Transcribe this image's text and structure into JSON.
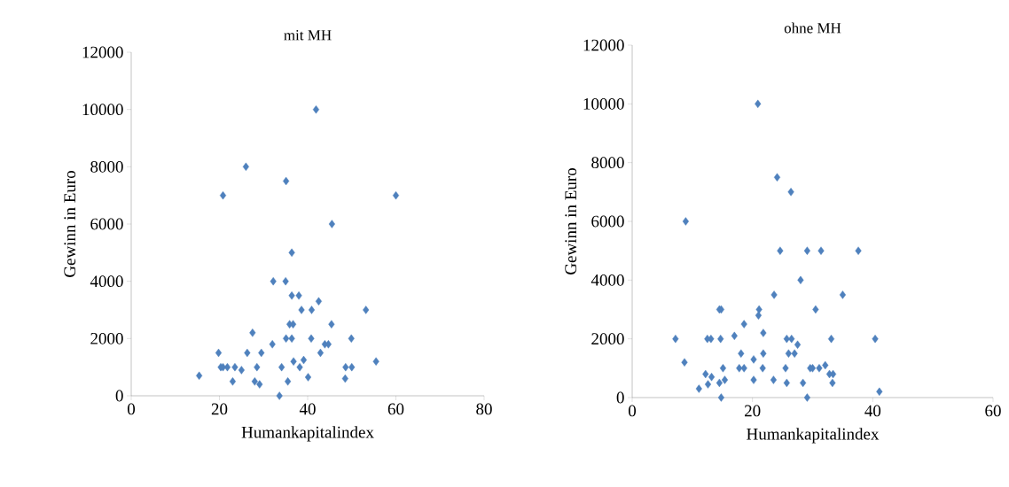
{
  "chart_data": [
    {
      "type": "scatter",
      "title": "mit MH",
      "xlabel": "Humankapitalindex",
      "ylabel": "Gewinn in Euro",
      "color": "#4f81bd",
      "marker": "diamond",
      "grid": false,
      "x": [
        41.9,
        26.0,
        35.1,
        20.8,
        60.0,
        45.5,
        36.4,
        32.2,
        35.0,
        36.4,
        38.0,
        42.5,
        38.6,
        40.9,
        53.2,
        35.9,
        36.7,
        45.4,
        27.5,
        35.1,
        36.4,
        40.8,
        49.9,
        32.0,
        43.9,
        44.7,
        19.8,
        26.3,
        29.5,
        42.9,
        36.8,
        39.1,
        55.5,
        20.3,
        20.8,
        21.8,
        23.5,
        25.0,
        28.5,
        34.1,
        38.2,
        48.6,
        50.0,
        15.4,
        23.0,
        28.0,
        29.1,
        35.5,
        40.1,
        48.5,
        33.6
      ],
      "values": [
        10000,
        8000,
        7500,
        7000,
        7000,
        6000,
        5000,
        4000,
        4000,
        3500,
        3500,
        3300,
        3000,
        3000,
        3000,
        2500,
        2500,
        2500,
        2200,
        2000,
        2000,
        2000,
        2000,
        1800,
        1800,
        1800,
        1500,
        1500,
        1500,
        1500,
        1200,
        1250,
        1200,
        1000,
        1000,
        1000,
        1000,
        900,
        1000,
        1000,
        1000,
        1000,
        1000,
        700,
        500,
        500,
        400,
        500,
        650,
        600,
        0
      ],
      "xlim": [
        0,
        80
      ],
      "xticks": [
        0,
        20,
        40,
        60,
        80
      ],
      "ylim": [
        0,
        12000
      ],
      "yticks": [
        0,
        2000,
        4000,
        6000,
        8000,
        10000,
        12000
      ]
    },
    {
      "type": "scatter",
      "title": "ohne MH",
      "xlabel": "Humankapitalindex",
      "ylabel": "Gewinn in Euro",
      "color": "#4f81bd",
      "marker": "diamond",
      "grid": false,
      "x": [
        20.9,
        24.1,
        26.4,
        8.9,
        24.6,
        29.1,
        31.4,
        37.6,
        28.0,
        23.6,
        35.0,
        14.5,
        14.8,
        21.1,
        30.5,
        21.0,
        18.6,
        21.8,
        7.2,
        12.5,
        13.1,
        14.7,
        17.0,
        25.7,
        26.5,
        33.1,
        40.4,
        27.5,
        18.1,
        21.8,
        26.0,
        27.0,
        20.2,
        8.7,
        15.1,
        17.8,
        18.6,
        21.7,
        25.5,
        29.6,
        30.0,
        31.1,
        32.1,
        12.2,
        13.2,
        32.8,
        33.4,
        12.6,
        14.5,
        15.4,
        20.2,
        23.5,
        25.7,
        28.4,
        33.3,
        11.1,
        41.1,
        14.8,
        29.1
      ],
      "values": [
        10000,
        7500,
        7000,
        6000,
        5000,
        5000,
        5000,
        5000,
        4000,
        3500,
        3500,
        3000,
        3000,
        3000,
        3000,
        2800,
        2500,
        2200,
        2000,
        2000,
        2000,
        2000,
        2100,
        2000,
        2000,
        2000,
        2000,
        1800,
        1500,
        1500,
        1500,
        1500,
        1300,
        1200,
        1000,
        1000,
        1000,
        1000,
        1000,
        1000,
        1000,
        1000,
        1100,
        800,
        700,
        800,
        800,
        450,
        500,
        600,
        600,
        600,
        500,
        500,
        500,
        300,
        200,
        0,
        0
      ],
      "xlim": [
        0,
        60
      ],
      "xticks": [
        0,
        20,
        40,
        60
      ],
      "ylim": [
        0,
        12000
      ],
      "yticks": [
        0,
        2000,
        4000,
        6000,
        8000,
        10000,
        12000
      ]
    }
  ]
}
